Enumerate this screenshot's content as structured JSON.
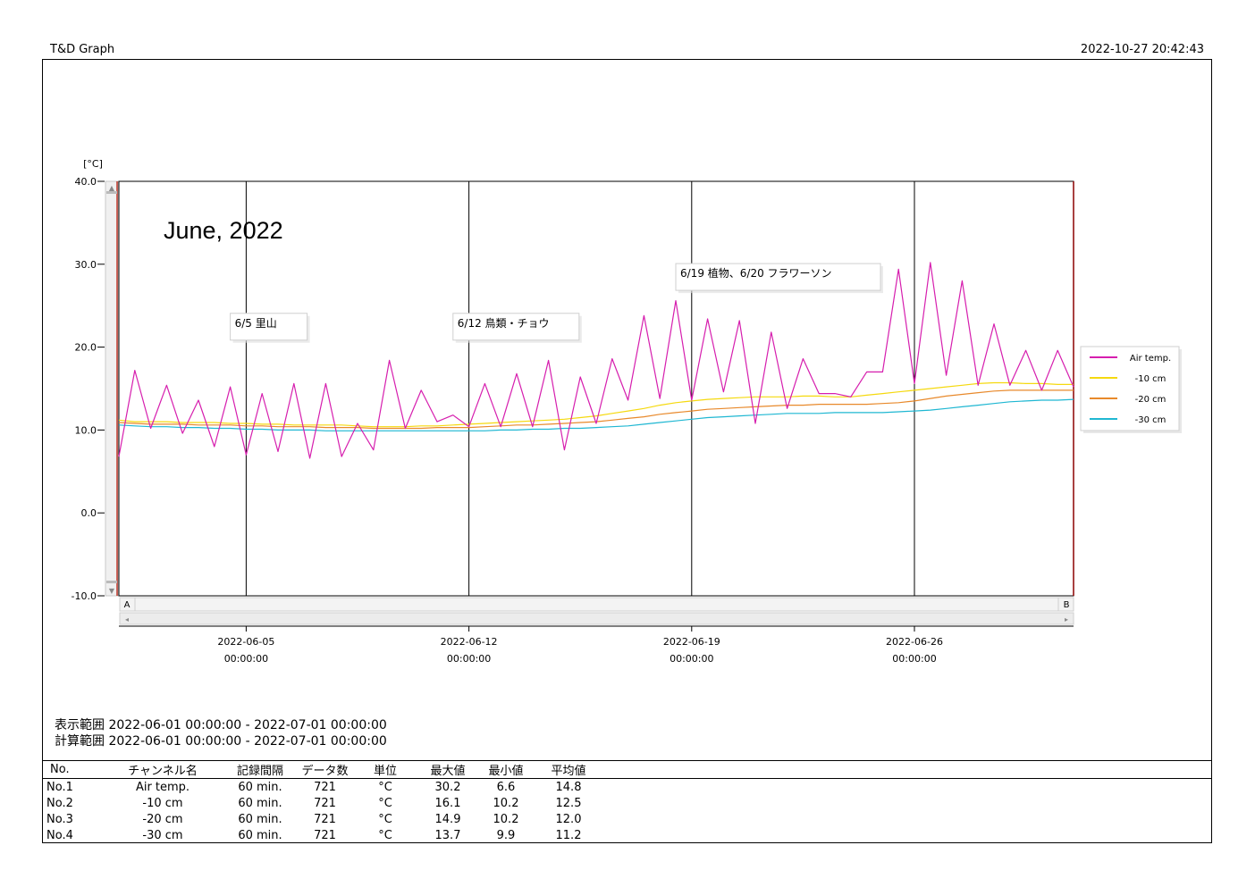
{
  "header": {
    "app_title": "T&D Graph",
    "print_timestamp": "2022-10-27 20:42:43"
  },
  "chart_data": {
    "type": "line",
    "title": "June, 2022",
    "ylabel": "[°C]",
    "ylim": [
      -10,
      40
    ],
    "y_ticks": [
      "40.0",
      "30.0",
      "20.0",
      "10.0",
      "0.0",
      "-10.0"
    ],
    "xlim": [
      "2022-06-01 00:00:00",
      "2022-07-01 00:00:00"
    ],
    "x_ticks": [
      {
        "date": "2022-06-05",
        "time": "00:00:00"
      },
      {
        "date": "2022-06-12",
        "time": "00:00:00"
      },
      {
        "date": "2022-06-19",
        "time": "00:00:00"
      },
      {
        "date": "2022-06-26",
        "time": "00:00:00"
      }
    ],
    "vertical_gridlines": true,
    "legend_position": "right",
    "cursor_labels": [
      "A",
      "B"
    ],
    "annotations": [
      {
        "text": "6/5 里山",
        "x": "2022-06-04 12:00",
        "y": 23.0
      },
      {
        "text": "6/12 鳥類・チョウ",
        "x": "2022-06-11 12:00",
        "y": 23.0
      },
      {
        "text": "6/19 植物、6/20 フラワーソン",
        "x": "2022-06-18 12:00",
        "y": 29.0
      }
    ],
    "x": [
      "06-01 00:00",
      "06-01 12:00",
      "06-02 00:00",
      "06-02 12:00",
      "06-03 00:00",
      "06-03 12:00",
      "06-04 00:00",
      "06-04 12:00",
      "06-05 00:00",
      "06-05 12:00",
      "06-06 00:00",
      "06-06 12:00",
      "06-07 00:00",
      "06-07 12:00",
      "06-08 00:00",
      "06-08 12:00",
      "06-09 00:00",
      "06-09 12:00",
      "06-10 00:00",
      "06-10 12:00",
      "06-11 00:00",
      "06-11 12:00",
      "06-12 00:00",
      "06-12 12:00",
      "06-13 00:00",
      "06-13 12:00",
      "06-14 00:00",
      "06-14 12:00",
      "06-15 00:00",
      "06-15 12:00",
      "06-16 00:00",
      "06-16 12:00",
      "06-17 00:00",
      "06-17 12:00",
      "06-18 00:00",
      "06-18 12:00",
      "06-19 00:00",
      "06-19 12:00",
      "06-20 00:00",
      "06-20 12:00",
      "06-21 00:00",
      "06-21 12:00",
      "06-22 00:00",
      "06-22 12:00",
      "06-23 00:00",
      "06-23 12:00",
      "06-24 00:00",
      "06-24 12:00",
      "06-25 00:00",
      "06-25 12:00",
      "06-26 00:00",
      "06-26 12:00",
      "06-27 00:00",
      "06-27 12:00",
      "06-28 00:00",
      "06-28 12:00",
      "06-29 00:00",
      "06-29 12:00",
      "06-30 00:00",
      "06-30 12:00",
      "07-01 00:00"
    ],
    "series": [
      {
        "name": "Air temp.",
        "color": "#d61eae",
        "values": [
          6.8,
          17.2,
          10.2,
          15.4,
          9.6,
          13.6,
          8.0,
          15.2,
          7.0,
          14.4,
          7.4,
          15.6,
          6.6,
          15.6,
          6.8,
          10.8,
          7.6,
          18.4,
          10.2,
          14.8,
          11.0,
          11.8,
          10.4,
          15.6,
          10.4,
          16.8,
          10.4,
          18.4,
          7.6,
          16.4,
          10.8,
          18.6,
          13.6,
          23.8,
          13.8,
          25.6,
          13.6,
          23.4,
          14.6,
          23.2,
          10.8,
          21.8,
          12.6,
          18.6,
          14.4,
          14.4,
          14.0,
          17.0,
          17.0,
          29.4,
          15.6,
          30.2,
          16.6,
          28.0,
          15.4,
          22.8,
          15.4,
          19.6,
          14.8,
          19.6,
          15.2
        ]
      },
      {
        "name": "-10 cm",
        "color": "#f5d90f",
        "values": [
          11.2,
          11.0,
          11.0,
          11.0,
          10.9,
          10.9,
          10.9,
          10.8,
          10.8,
          10.7,
          10.7,
          10.6,
          10.6,
          10.6,
          10.6,
          10.5,
          10.4,
          10.4,
          10.4,
          10.5,
          10.5,
          10.6,
          10.7,
          10.8,
          10.9,
          11.0,
          11.1,
          11.2,
          11.3,
          11.5,
          11.7,
          12.0,
          12.3,
          12.6,
          13.0,
          13.3,
          13.5,
          13.7,
          13.8,
          13.9,
          14.0,
          14.0,
          14.0,
          14.1,
          14.1,
          14.0,
          14.0,
          14.2,
          14.4,
          14.6,
          14.8,
          15.0,
          15.2,
          15.4,
          15.6,
          15.7,
          15.7,
          15.6,
          15.6,
          15.5,
          15.5
        ]
      },
      {
        "name": "-20 cm",
        "color": "#e8892b",
        "values": [
          10.9,
          10.8,
          10.7,
          10.7,
          10.7,
          10.6,
          10.6,
          10.6,
          10.5,
          10.5,
          10.4,
          10.4,
          10.4,
          10.3,
          10.3,
          10.3,
          10.2,
          10.2,
          10.2,
          10.2,
          10.3,
          10.3,
          10.3,
          10.4,
          10.5,
          10.6,
          10.6,
          10.7,
          10.8,
          10.9,
          11.0,
          11.2,
          11.4,
          11.6,
          11.9,
          12.1,
          12.3,
          12.5,
          12.6,
          12.7,
          12.8,
          12.9,
          13.0,
          13.0,
          13.1,
          13.1,
          13.1,
          13.1,
          13.2,
          13.3,
          13.5,
          13.8,
          14.1,
          14.3,
          14.5,
          14.7,
          14.8,
          14.8,
          14.8,
          14.8,
          14.8
        ]
      },
      {
        "name": "-30 cm",
        "color": "#1fb7d2",
        "values": [
          10.6,
          10.5,
          10.4,
          10.4,
          10.3,
          10.3,
          10.2,
          10.2,
          10.1,
          10.1,
          10.0,
          10.0,
          10.0,
          9.9,
          9.9,
          9.9,
          9.9,
          9.9,
          9.9,
          9.9,
          9.9,
          9.9,
          9.9,
          9.9,
          10.0,
          10.0,
          10.1,
          10.1,
          10.2,
          10.2,
          10.3,
          10.4,
          10.5,
          10.7,
          10.9,
          11.1,
          11.3,
          11.5,
          11.6,
          11.7,
          11.8,
          11.9,
          12.0,
          12.0,
          12.0,
          12.1,
          12.1,
          12.1,
          12.1,
          12.2,
          12.3,
          12.4,
          12.6,
          12.8,
          13.0,
          13.2,
          13.4,
          13.5,
          13.6,
          13.6,
          13.7
        ]
      }
    ]
  },
  "ranges": {
    "display": "表示範囲 2022-06-01 00:00:00 - 2022-07-01 00:00:00",
    "calc": "計算範囲 2022-06-01 00:00:00 - 2022-07-01 00:00:00"
  },
  "table": {
    "headers": {
      "no": "No.",
      "channel": "チャンネル名",
      "interval": "記録間隔",
      "count": "データ数",
      "unit": "単位",
      "max": "最大値",
      "min": "最小値",
      "avg": "平均値"
    },
    "rows": [
      {
        "no": "No.1",
        "channel": "Air temp.",
        "interval": "60 min.",
        "count": "721",
        "unit": "°C",
        "max": "30.2",
        "min": "6.6",
        "avg": "14.8"
      },
      {
        "no": "No.2",
        "channel": "-10 cm",
        "interval": "60 min.",
        "count": "721",
        "unit": "°C",
        "max": "16.1",
        "min": "10.2",
        "avg": "12.5"
      },
      {
        "no": "No.3",
        "channel": "-20 cm",
        "interval": "60 min.",
        "count": "721",
        "unit": "°C",
        "max": "14.9",
        "min": "10.2",
        "avg": "12.0"
      },
      {
        "no": "No.4",
        "channel": "-30 cm",
        "interval": "60 min.",
        "count": "721",
        "unit": "°C",
        "max": "13.7",
        "min": "9.9",
        "avg": "11.2"
      }
    ]
  }
}
